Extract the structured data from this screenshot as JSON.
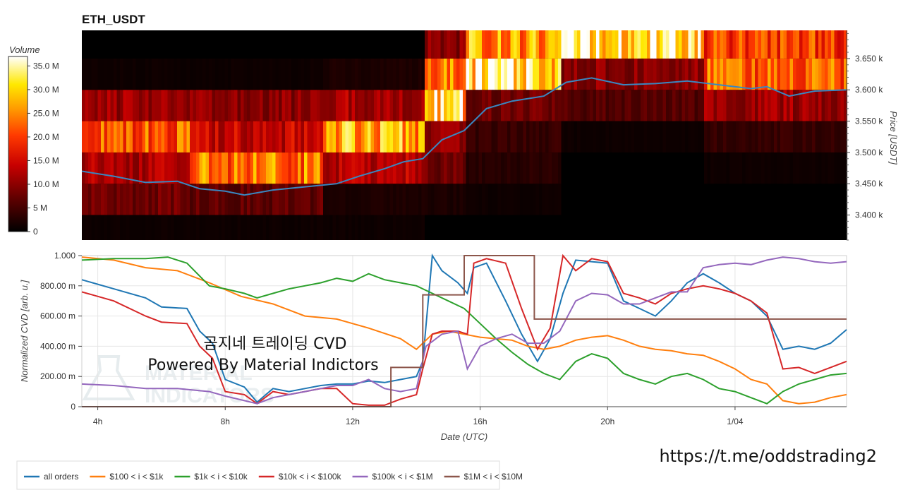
{
  "title": "ETH_USDT",
  "overlay_text": [
    "곰지네 트레이딩 CVD",
    "Powered By Material Indictors"
  ],
  "watermark": [
    "MATERIAL",
    "INDICATORS"
  ],
  "url_text": "https://t.me/oddstrading2",
  "colors": {
    "all_orders": "#1f77b4",
    "s100_1k": "#ff7f0e",
    "s1k_10k": "#2ca02c",
    "s10k_100k": "#d62728",
    "s100k_1m": "#9467bd",
    "s1m_10m": "#8c564b"
  },
  "chart_data": [
    {
      "type": "heatmap",
      "title": "ETH_USDT",
      "ylabel": "Price [USDT]",
      "ylim": [
        3360,
        3695
      ],
      "yticks": [
        "3.400 k",
        "3.450 k",
        "3.500 k",
        "3.550 k",
        "3.600 k",
        "3.650 k"
      ],
      "ytick_values": [
        3400,
        3450,
        3500,
        3550,
        3600,
        3650
      ],
      "x_range_hours": [
        3.5,
        27.5
      ],
      "price_bins": [
        3375,
        3425,
        3475,
        3525,
        3575,
        3625,
        3675
      ],
      "colorbar": {
        "title": "Volume",
        "ticks": [
          "0",
          "5 M",
          "10.0 M",
          "15.0 M",
          "20.0 M",
          "25.0 M",
          "30.0 M",
          "35.0 M"
        ],
        "tick_values": [
          0,
          5,
          10,
          15,
          20,
          25,
          30,
          35
        ],
        "range": [
          0,
          37
        ]
      },
      "volume_bands_M": [
        {
          "start": 3.5,
          "end": 6.8,
          "levels": [
            1,
            8,
            12,
            22,
            11,
            1,
            0
          ]
        },
        {
          "start": 6.8,
          "end": 11.0,
          "levels": [
            1,
            7,
            24,
            14,
            10,
            1,
            0
          ]
        },
        {
          "start": 11.0,
          "end": 14.2,
          "levels": [
            1,
            2,
            13,
            27,
            12,
            2,
            0
          ]
        },
        {
          "start": 14.2,
          "end": 15.5,
          "levels": [
            0,
            2,
            8,
            10,
            30,
            25,
            10
          ]
        },
        {
          "start": 15.5,
          "end": 18.5,
          "levels": [
            0,
            1,
            3,
            4,
            8,
            32,
            26
          ]
        },
        {
          "start": 18.5,
          "end": 23.0,
          "levels": [
            0,
            0,
            0,
            1,
            6,
            10,
            34
          ]
        },
        {
          "start": 23.0,
          "end": 27.5,
          "levels": [
            0,
            0,
            1,
            4,
            11,
            22,
            20
          ]
        }
      ],
      "price_line": {
        "name": "price",
        "x_hours": [
          3.5,
          4.5,
          5.5,
          6.5,
          7.2,
          8.0,
          8.6,
          9.5,
          10.5,
          11.5,
          12.2,
          13.0,
          13.6,
          14.2,
          14.8,
          15.5,
          16.2,
          17.0,
          18.0,
          18.7,
          19.5,
          20.5,
          21.5,
          22.5,
          23.5,
          24.5,
          25.0,
          25.7,
          26.5,
          27.5
        ],
        "y": [
          3470,
          3462,
          3452,
          3454,
          3442,
          3438,
          3432,
          3440,
          3445,
          3450,
          3462,
          3474,
          3485,
          3490,
          3520,
          3535,
          3570,
          3582,
          3590,
          3612,
          3619,
          3608,
          3610,
          3614,
          3608,
          3602,
          3605,
          3590,
          3598,
          3600
        ]
      }
    },
    {
      "type": "line",
      "xlabel": "Date (UTC)",
      "ylabel": "Normalized CVD [arb. u.]",
      "ylim": [
        0,
        1
      ],
      "yticks": [
        "0",
        "200.00 m",
        "400.00 m",
        "600.00 m",
        "800.00 m",
        "1.000"
      ],
      "ytick_values": [
        0,
        0.2,
        0.4,
        0.6,
        0.8,
        1.0
      ],
      "xticks": [
        "4h",
        "8h",
        "12h",
        "16h",
        "20h",
        "1/04"
      ],
      "xtick_hours": [
        4,
        8,
        12,
        16,
        20,
        24
      ],
      "x_range_hours": [
        3.5,
        27.5
      ],
      "legend_position": "bottom-left",
      "series": [
        {
          "name": "all orders",
          "color_key": "all_orders",
          "x": [
            3.5,
            4.5,
            5.5,
            6.0,
            6.8,
            7.2,
            7.6,
            8.0,
            8.6,
            9.0,
            9.5,
            10.0,
            10.5,
            11.0,
            11.5,
            12.0,
            12.5,
            13.0,
            13.5,
            14.0,
            14.2,
            14.5,
            14.8,
            15.3,
            15.6,
            15.8,
            16.2,
            16.8,
            17.3,
            17.8,
            18.2,
            18.6,
            19.0,
            19.5,
            20.0,
            20.5,
            21.0,
            21.5,
            22.0,
            22.5,
            23.0,
            23.5,
            24.0,
            24.5,
            25.0,
            25.5,
            26.0,
            26.5,
            27.0,
            27.5
          ],
          "y": [
            0.84,
            0.78,
            0.72,
            0.66,
            0.65,
            0.5,
            0.42,
            0.18,
            0.13,
            0.03,
            0.12,
            0.1,
            0.12,
            0.14,
            0.15,
            0.15,
            0.17,
            0.16,
            0.18,
            0.2,
            0.3,
            1.0,
            0.9,
            0.82,
            0.75,
            0.92,
            0.95,
            0.7,
            0.48,
            0.3,
            0.45,
            0.75,
            0.97,
            0.96,
            0.95,
            0.7,
            0.65,
            0.6,
            0.7,
            0.82,
            0.88,
            0.82,
            0.75,
            0.7,
            0.6,
            0.38,
            0.4,
            0.38,
            0.42,
            0.51
          ]
        },
        {
          "name": "$100 < i < $1k",
          "color_key": "s100_1k",
          "x": [
            3.5,
            4.5,
            5.5,
            6.5,
            7.5,
            8.5,
            9.5,
            10.5,
            11.5,
            12.5,
            13.5,
            14.0,
            14.5,
            15.0,
            15.5,
            16.0,
            16.5,
            17.0,
            17.5,
            18.0,
            18.5,
            19.0,
            19.5,
            20.0,
            20.5,
            21.0,
            21.5,
            22.0,
            22.5,
            23.0,
            23.5,
            24.0,
            24.5,
            25.0,
            25.5,
            26.0,
            26.5,
            27.0,
            27.5
          ],
          "y": [
            0.99,
            0.97,
            0.92,
            0.9,
            0.82,
            0.73,
            0.68,
            0.6,
            0.58,
            0.52,
            0.45,
            0.38,
            0.48,
            0.5,
            0.48,
            0.46,
            0.45,
            0.44,
            0.4,
            0.38,
            0.4,
            0.44,
            0.46,
            0.47,
            0.44,
            0.4,
            0.38,
            0.37,
            0.35,
            0.34,
            0.3,
            0.25,
            0.18,
            0.15,
            0.04,
            0.02,
            0.03,
            0.06,
            0.08
          ]
        },
        {
          "name": "$1k < i < $10k",
          "color_key": "s1k_10k",
          "x": [
            3.5,
            4.5,
            5.5,
            6.2,
            6.8,
            7.5,
            8.0,
            8.6,
            9.0,
            9.5,
            10.0,
            10.5,
            11.0,
            11.5,
            12.0,
            12.5,
            13.0,
            13.5,
            14.0,
            14.5,
            15.0,
            15.5,
            16.0,
            16.5,
            17.0,
            17.5,
            18.0,
            18.5,
            19.0,
            19.5,
            20.0,
            20.5,
            21.0,
            21.5,
            22.0,
            22.5,
            23.0,
            23.5,
            24.0,
            24.5,
            25.0,
            25.5,
            26.0,
            26.5,
            27.0,
            27.5
          ],
          "y": [
            0.97,
            0.98,
            0.98,
            0.99,
            0.95,
            0.8,
            0.78,
            0.75,
            0.72,
            0.75,
            0.78,
            0.8,
            0.82,
            0.85,
            0.83,
            0.88,
            0.84,
            0.82,
            0.8,
            0.75,
            0.7,
            0.65,
            0.55,
            0.45,
            0.36,
            0.28,
            0.22,
            0.18,
            0.3,
            0.35,
            0.32,
            0.22,
            0.18,
            0.15,
            0.2,
            0.22,
            0.18,
            0.12,
            0.1,
            0.06,
            0.02,
            0.1,
            0.15,
            0.18,
            0.21,
            0.22
          ]
        },
        {
          "name": "$10k < i < $100k",
          "color_key": "s10k_100k",
          "x": [
            3.5,
            4.5,
            5.5,
            6.0,
            6.8,
            7.2,
            7.6,
            8.0,
            8.6,
            9.0,
            9.5,
            10.0,
            10.5,
            11.0,
            11.5,
            12.0,
            12.5,
            13.0,
            13.5,
            14.0,
            14.2,
            14.5,
            14.8,
            15.3,
            15.6,
            15.8,
            16.2,
            16.8,
            17.3,
            17.8,
            18.2,
            18.6,
            19.0,
            19.5,
            20.0,
            20.5,
            21.0,
            21.5,
            22.0,
            22.5,
            23.0,
            23.5,
            24.0,
            24.5,
            25.0,
            25.5,
            26.0,
            26.5,
            27.0,
            27.5
          ],
          "y": [
            0.76,
            0.7,
            0.6,
            0.56,
            0.55,
            0.4,
            0.32,
            0.1,
            0.08,
            0.02,
            0.1,
            0.08,
            0.1,
            0.12,
            0.12,
            0.02,
            0.01,
            0.01,
            0.05,
            0.08,
            0.25,
            0.48,
            0.5,
            0.5,
            0.48,
            0.95,
            0.98,
            0.95,
            0.65,
            0.38,
            0.52,
            1.0,
            0.9,
            0.98,
            0.96,
            0.75,
            0.72,
            0.68,
            0.75,
            0.78,
            0.8,
            0.78,
            0.75,
            0.7,
            0.62,
            0.25,
            0.26,
            0.22,
            0.26,
            0.3
          ]
        },
        {
          "name": "$100k < i < $1M",
          "color_key": "s100k_1m",
          "x": [
            3.5,
            4.5,
            5.5,
            6.5,
            7.5,
            8.0,
            8.6,
            9.0,
            9.5,
            10.0,
            10.5,
            11.0,
            11.5,
            12.0,
            12.5,
            13.0,
            13.5,
            14.0,
            14.3,
            14.8,
            15.3,
            15.6,
            16.0,
            16.5,
            17.0,
            17.5,
            18.0,
            18.5,
            19.0,
            19.5,
            20.0,
            20.5,
            21.0,
            21.5,
            22.0,
            22.5,
            23.0,
            23.5,
            24.0,
            24.5,
            25.0,
            25.5,
            26.0,
            26.5,
            27.0,
            27.5
          ],
          "y": [
            0.15,
            0.14,
            0.12,
            0.12,
            0.1,
            0.07,
            0.04,
            0.02,
            0.06,
            0.08,
            0.1,
            0.12,
            0.14,
            0.14,
            0.18,
            0.12,
            0.1,
            0.12,
            0.4,
            0.48,
            0.5,
            0.25,
            0.4,
            0.45,
            0.48,
            0.42,
            0.42,
            0.5,
            0.7,
            0.75,
            0.74,
            0.68,
            0.68,
            0.72,
            0.76,
            0.76,
            0.92,
            0.94,
            0.95,
            0.94,
            0.97,
            0.99,
            0.98,
            0.96,
            0.95,
            0.96
          ]
        },
        {
          "name": "$1M < i < $10M",
          "color_key": "s1m_10m",
          "x": [
            3.5,
            12.0,
            12.0,
            13.2,
            13.2,
            14.2,
            14.2,
            15.5,
            15.5,
            17.7,
            17.7,
            27.5
          ],
          "y": [
            0.0,
            0.0,
            0.0,
            0.0,
            0.26,
            0.26,
            0.74,
            0.74,
            1.0,
            1.0,
            0.58,
            0.58
          ]
        }
      ]
    }
  ],
  "legend": {
    "items": [
      "all orders",
      "$100 < i < $1k",
      "$1k < i < $10k",
      "$10k < i < $100k",
      "$100k < i < $1M",
      "$1M < i < $10M"
    ]
  }
}
